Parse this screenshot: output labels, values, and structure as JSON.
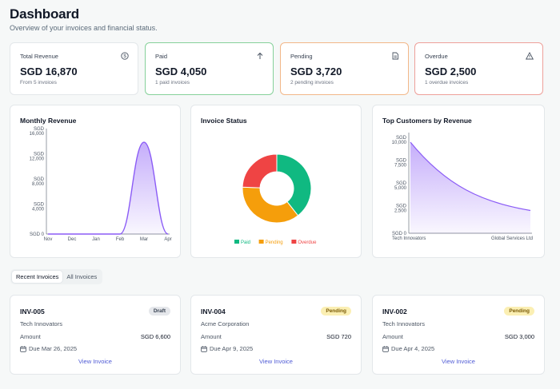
{
  "header": {
    "title": "Dashboard",
    "subtitle": "Overview of your invoices and financial status."
  },
  "stats": [
    {
      "label": "Total Revenue",
      "value": "SGD 16,870",
      "sub": "From 5 invoices",
      "icon": "dollar-icon"
    },
    {
      "label": "Paid",
      "value": "SGD 4,050",
      "sub": "1 paid invoices",
      "icon": "arrow-up-icon"
    },
    {
      "label": "Pending",
      "value": "SGD 3,720",
      "sub": "2 pending invoices",
      "icon": "document-icon"
    },
    {
      "label": "Overdue",
      "value": "SGD 2,500",
      "sub": "1 overdue invoices",
      "icon": "warning-icon"
    }
  ],
  "colors": {
    "paid": "#10b981",
    "pending": "#f59e0b",
    "overdue": "#ef4444",
    "accent": "#8b5cf6",
    "link": "#4f5bd5"
  },
  "chart_data": [
    {
      "type": "area",
      "title": "Monthly Revenue",
      "categories": [
        "Nov",
        "Dec",
        "Jan",
        "Feb",
        "Mar",
        "Apr"
      ],
      "values": [
        0,
        0,
        0,
        0,
        14600,
        0
      ],
      "ytick_labels": [
        [
          "SGD",
          "16,000"
        ],
        [
          "SGD",
          "12,000"
        ],
        [
          "SGD",
          "8,000"
        ],
        [
          "SGD",
          "4,000"
        ],
        [
          "SGD 0"
        ]
      ],
      "yticks": [
        16000,
        12000,
        8000,
        4000,
        0
      ],
      "ylim": [
        0,
        16000
      ]
    },
    {
      "type": "pie",
      "title": "Invoice Status",
      "labels": [
        "Paid",
        "Pending",
        "Overdue"
      ],
      "values": [
        4050,
        3720,
        2500
      ],
      "colors": [
        "#10b981",
        "#f59e0b",
        "#ef4444"
      ],
      "legend": "bottom"
    },
    {
      "type": "area",
      "title": "Top Customers by Revenue",
      "categories": [
        "Tech Innovators",
        "Global Services Ltd"
      ],
      "values": [
        10000,
        2500
      ],
      "ytick_labels": [
        [
          "SGD",
          "10,000"
        ],
        [
          "SGD",
          "7,500"
        ],
        [
          "SGD",
          "5,000"
        ],
        [
          "SGD",
          "2,500"
        ],
        [
          "SGD 0"
        ]
      ],
      "yticks": [
        10000,
        7500,
        5000,
        2500,
        0
      ],
      "ylim": [
        0,
        10000
      ]
    }
  ],
  "tabs": [
    "Recent Invoices",
    "All Invoices"
  ],
  "invoices": [
    {
      "id": "INV-005",
      "status": "Draft",
      "customer": "Tech Innovators",
      "amount_label": "Amount",
      "amount": "SGD 6,600",
      "due": "Due Mar 26, 2025",
      "link": "View Invoice"
    },
    {
      "id": "INV-004",
      "status": "Pending",
      "customer": "Acme Corporation",
      "amount_label": "Amount",
      "amount": "SGD 720",
      "due": "Due Apr 9, 2025",
      "link": "View Invoice"
    },
    {
      "id": "INV-002",
      "status": "Pending",
      "customer": "Tech Innovators",
      "amount_label": "Amount",
      "amount": "SGD 3,000",
      "due": "Due Apr 4, 2025",
      "link": "View Invoice"
    }
  ]
}
